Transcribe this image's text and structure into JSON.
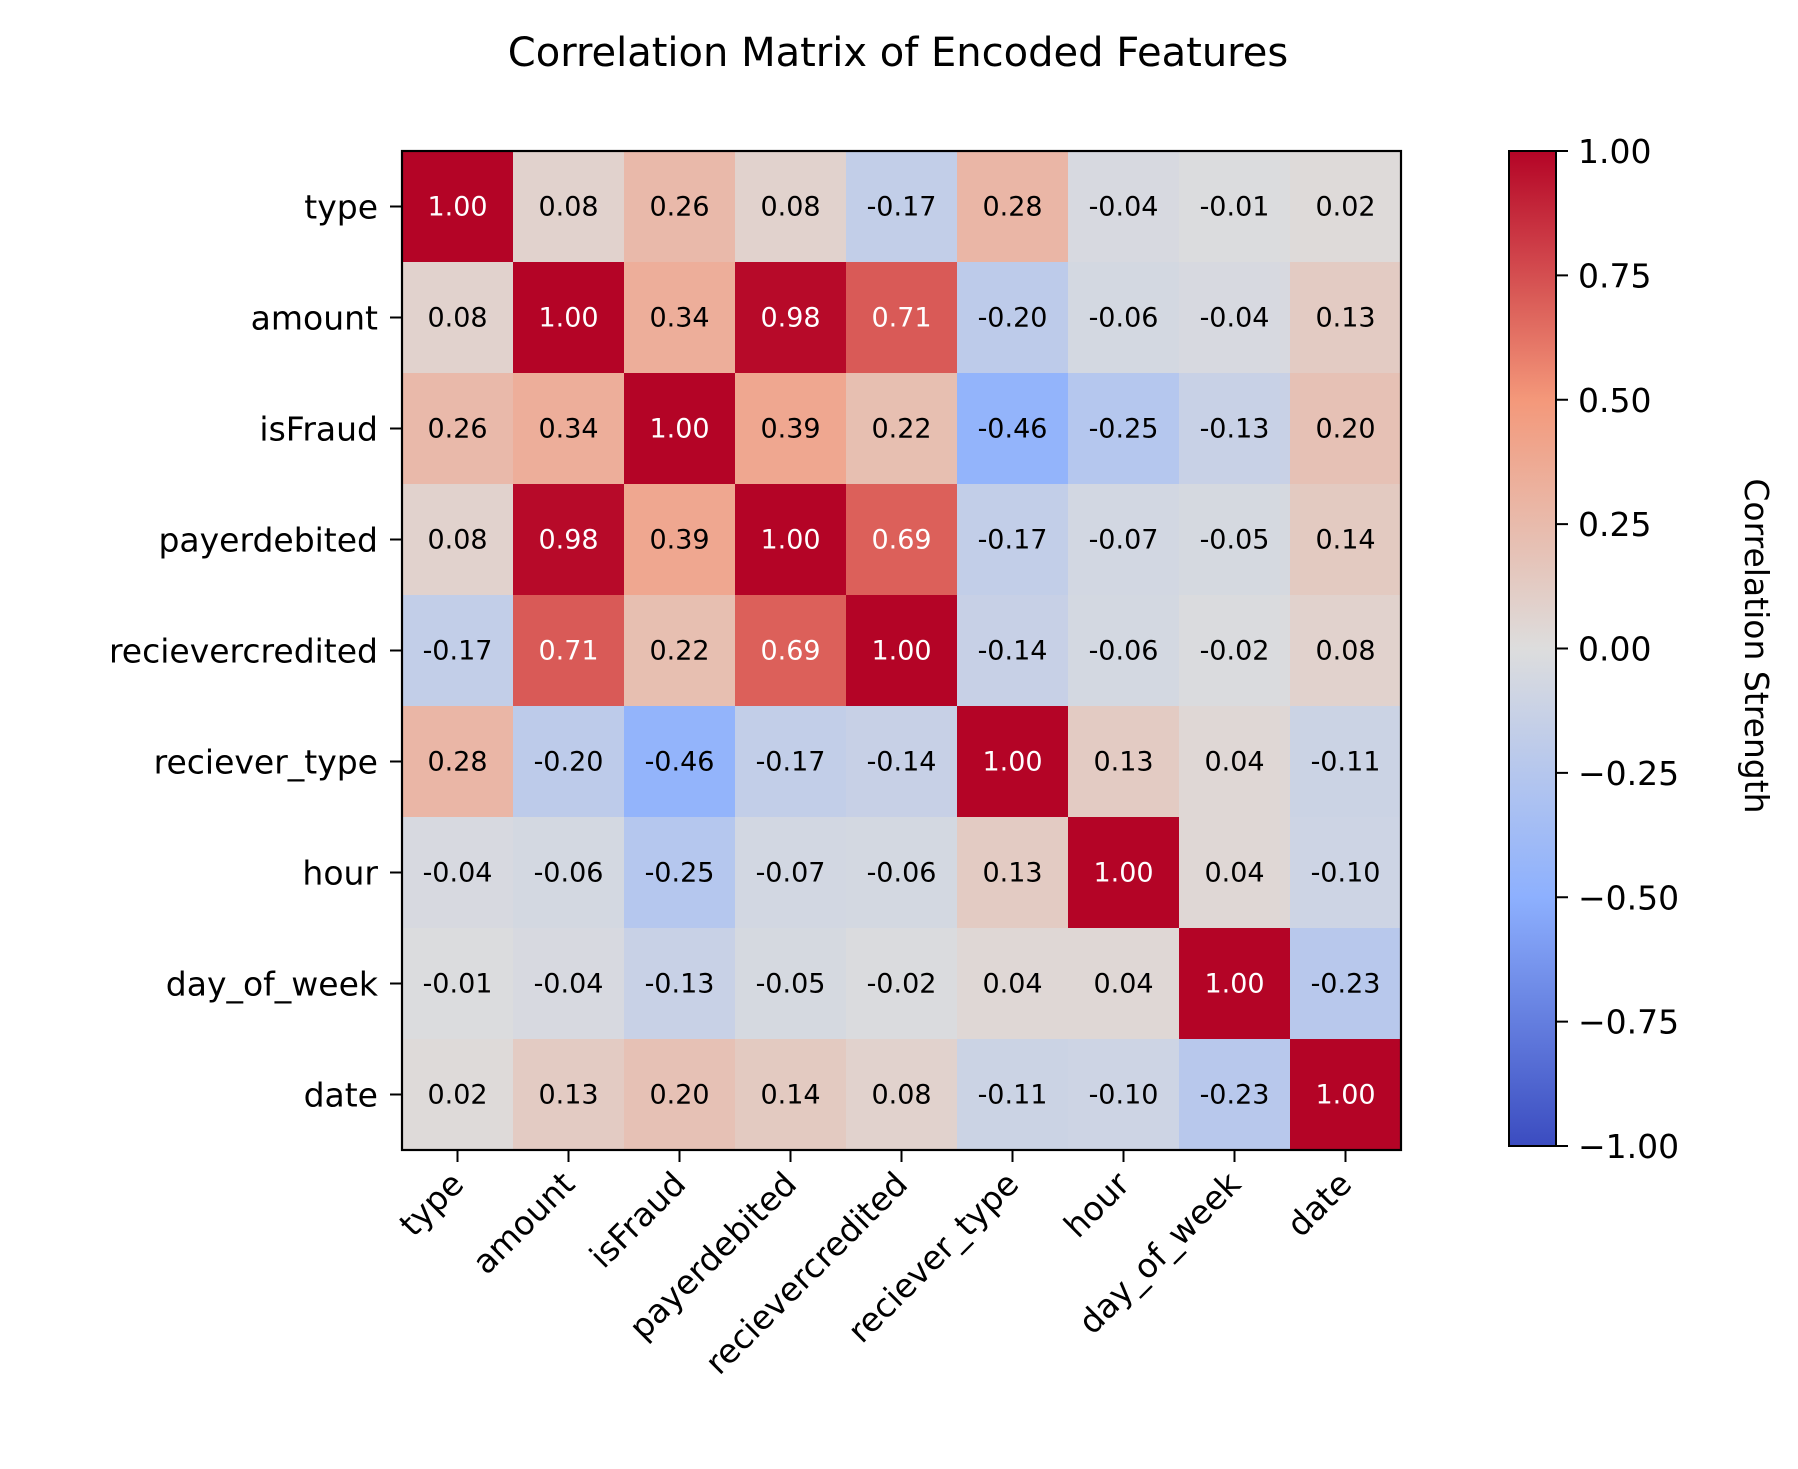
{
  "chart_data": {
    "type": "heatmap",
    "title": "Correlation Matrix of Encoded Features",
    "x_categories": [
      "type",
      "amount",
      "isFraud",
      "payerdebited",
      "recievercredited",
      "reciever_type",
      "hour",
      "day_of_week",
      "date"
    ],
    "y_categories": [
      "type",
      "amount",
      "isFraud",
      "payerdebited",
      "recievercredited",
      "reciever_type",
      "hour",
      "day_of_week",
      "date"
    ],
    "values": [
      [
        1.0,
        0.08,
        0.26,
        0.08,
        -0.17,
        0.28,
        -0.04,
        -0.01,
        0.02
      ],
      [
        0.08,
        1.0,
        0.34,
        0.98,
        0.71,
        -0.2,
        -0.06,
        -0.04,
        0.13
      ],
      [
        0.26,
        0.34,
        1.0,
        0.39,
        0.22,
        -0.46,
        -0.25,
        -0.13,
        0.2
      ],
      [
        0.08,
        0.98,
        0.39,
        1.0,
        0.69,
        -0.17,
        -0.07,
        -0.05,
        0.14
      ],
      [
        -0.17,
        0.71,
        0.22,
        0.69,
        1.0,
        -0.14,
        -0.06,
        -0.02,
        0.08
      ],
      [
        0.28,
        -0.2,
        -0.46,
        -0.17,
        -0.14,
        1.0,
        0.13,
        0.04,
        -0.11
      ],
      [
        -0.04,
        -0.06,
        -0.25,
        -0.07,
        -0.06,
        0.13,
        1.0,
        0.04,
        -0.1
      ],
      [
        -0.01,
        -0.04,
        -0.13,
        -0.05,
        -0.02,
        0.04,
        0.04,
        1.0,
        -0.23
      ],
      [
        0.02,
        0.13,
        0.2,
        0.14,
        0.08,
        -0.11,
        -0.1,
        -0.23,
        1.0
      ]
    ],
    "colormap": "coolwarm",
    "vmin": -1.0,
    "vmax": 1.0,
    "colorbar": {
      "label": "Correlation Strength",
      "ticks": [
        1.0,
        0.75,
        0.5,
        0.25,
        0.0,
        -0.25,
        -0.5,
        -0.75,
        -1.0
      ],
      "tick_labels": [
        "1.00",
        "0.75",
        "0.50",
        "0.25",
        "0.00",
        "−0.25",
        "−0.50",
        "−0.75",
        "−1.00"
      ]
    },
    "colors": {
      "low": "#3b4cc0",
      "mid": "#dddddd",
      "high": "#b40426"
    }
  }
}
